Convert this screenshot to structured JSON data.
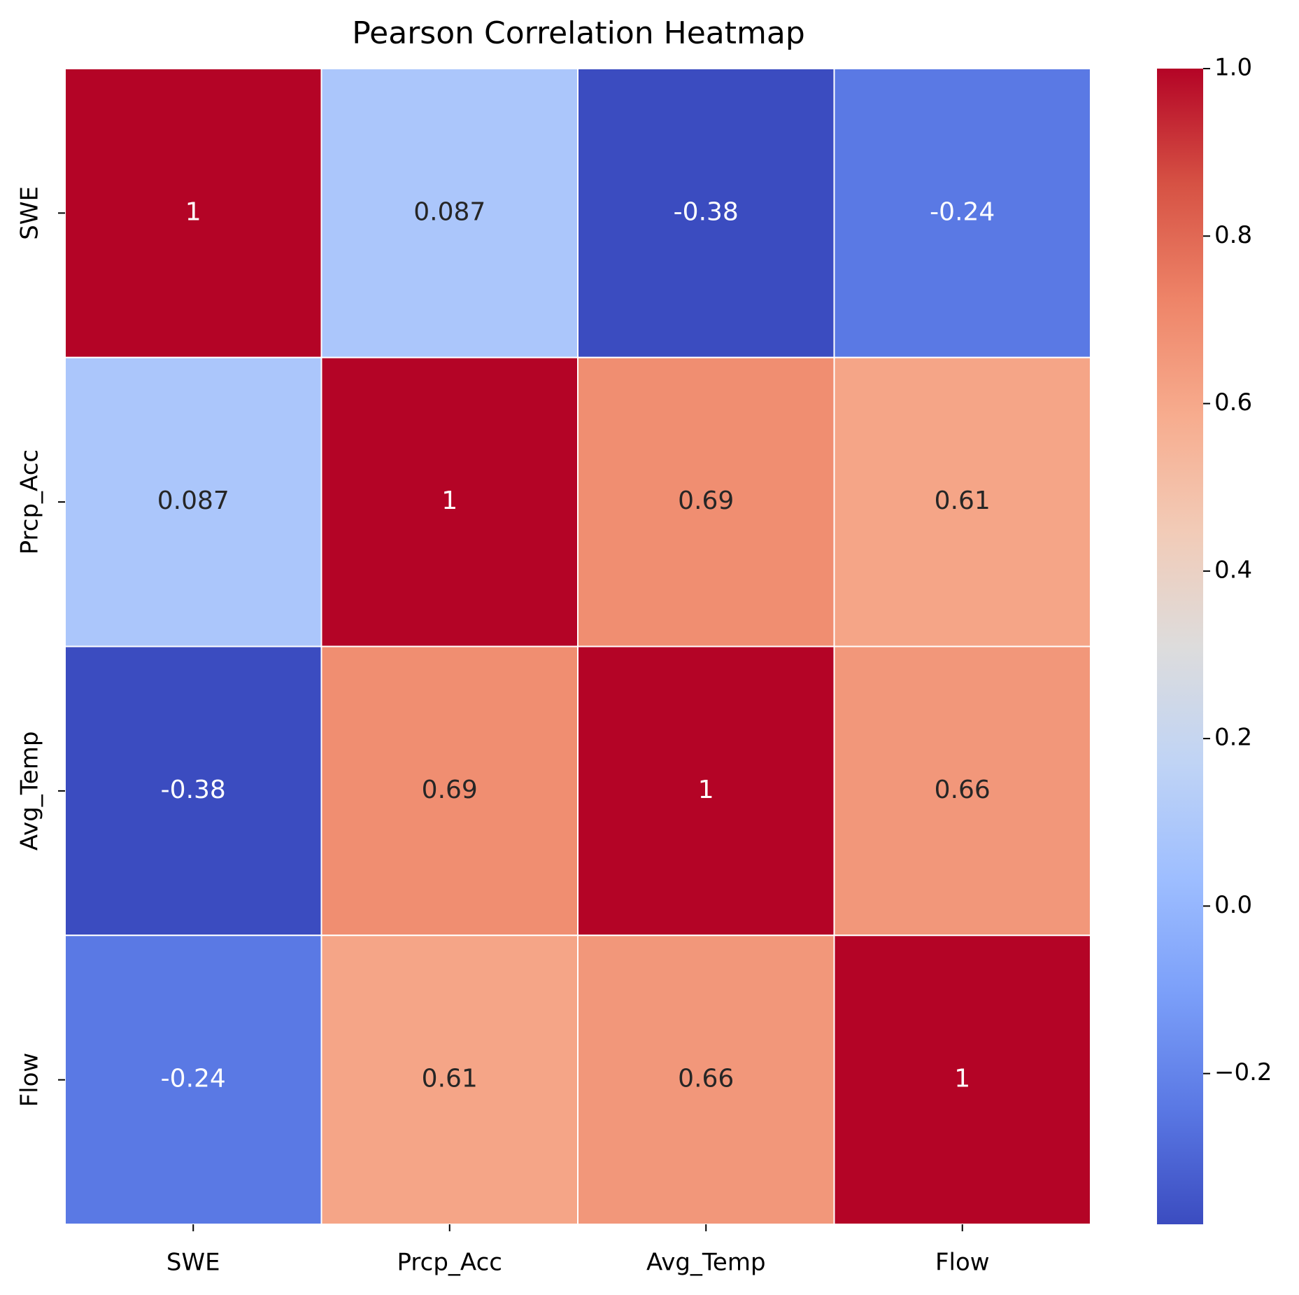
{
  "chart_data": {
    "type": "heatmap",
    "title": "Pearson Correlation Heatmap",
    "categories": [
      "SWE",
      "Prcp_Acc",
      "Avg_Temp",
      "Flow"
    ],
    "y_categories": [
      "SWE",
      "Prcp_Acc",
      "Avg_Temp",
      "Flow"
    ],
    "values": [
      [
        1,
        0.087,
        -0.38,
        -0.24
      ],
      [
        0.087,
        1,
        0.69,
        0.61
      ],
      [
        -0.38,
        0.69,
        1,
        0.66
      ],
      [
        -0.24,
        0.61,
        0.66,
        1
      ]
    ],
    "colormap": "coolwarm",
    "clim": [
      -0.38,
      1
    ],
    "cticks": [
      {
        "value": -0.2,
        "label": "−0.2"
      },
      {
        "value": 0,
        "label": "0.0"
      },
      0.2,
      0.4,
      0.6,
      0.8,
      {
        "value": 1,
        "label": "1.0"
      }
    ]
  }
}
